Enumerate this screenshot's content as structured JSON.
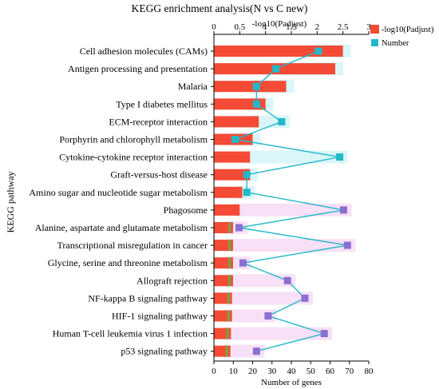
{
  "chart_data": {
    "type": "bar",
    "title": "KEGG enrichment analysis(N  vs  C  new)",
    "ylabel": "KEGG pathway",
    "xlabel_bottom": "Number of genes",
    "xlabel_top": "-log10(Padjust)",
    "xlim_bottom": [
      0,
      80
    ],
    "xticks_bottom": [
      "0",
      "10",
      "20",
      "30",
      "40",
      "50",
      "60",
      "70",
      "80"
    ],
    "xlim_top": [
      0,
      3
    ],
    "xticks_top": [
      "0",
      "0.5",
      "1",
      "1.5",
      "2",
      "2.5",
      "3"
    ],
    "legend": {
      "placement": "top-right",
      "entries": [
        "-log10(Padjust)",
        "Number"
      ]
    },
    "categories": [
      "Cell adhesion molecules (CAMs)",
      "Antigen processing and presentation",
      "Malaria",
      "Type I diabetes mellitus",
      "ECM-receptor interaction",
      "Porphyrin and chlorophyll metabolism",
      "Cytokine-cytokine receptor interaction",
      "Graft-versus-host disease",
      "Amino sugar and nucleotide sugar metabolism",
      "Phagosome",
      "Alanine, aspartate and glutamate metabolism",
      "Transcriptional misregulation in cancer",
      "Glycine, serine and threonine metabolism",
      "Allograft rejection",
      "NF-kappa B signaling pathway",
      "HIF-1 signaling pathway",
      "Human T-cell leukemia virus 1 infection",
      "p53 signaling pathway"
    ],
    "series": [
      {
        "name": "-log10(Padjust)",
        "axis": "top",
        "values": [
          2.5,
          2.35,
          1.4,
          1.0,
          0.87,
          0.75,
          0.7,
          0.7,
          0.55,
          0.5,
          0.37,
          0.37,
          0.37,
          0.37,
          0.35,
          0.35,
          0.33,
          0.32
        ]
      },
      {
        "name": "Number",
        "axis": "bottom",
        "values": [
          54,
          32,
          22,
          22,
          35,
          11,
          65,
          17,
          17,
          67,
          13,
          69,
          15,
          38,
          47,
          28,
          57,
          22
        ]
      }
    ],
    "colors": {
      "bar": "#f54a36",
      "bar_low": "#7ba23f",
      "line": "#22b8c8",
      "marker_high": "#22b8c8",
      "marker_low": "#8a6fd1",
      "halo_high": "#cdf3f7",
      "halo_low": "#f6d5f3"
    }
  }
}
